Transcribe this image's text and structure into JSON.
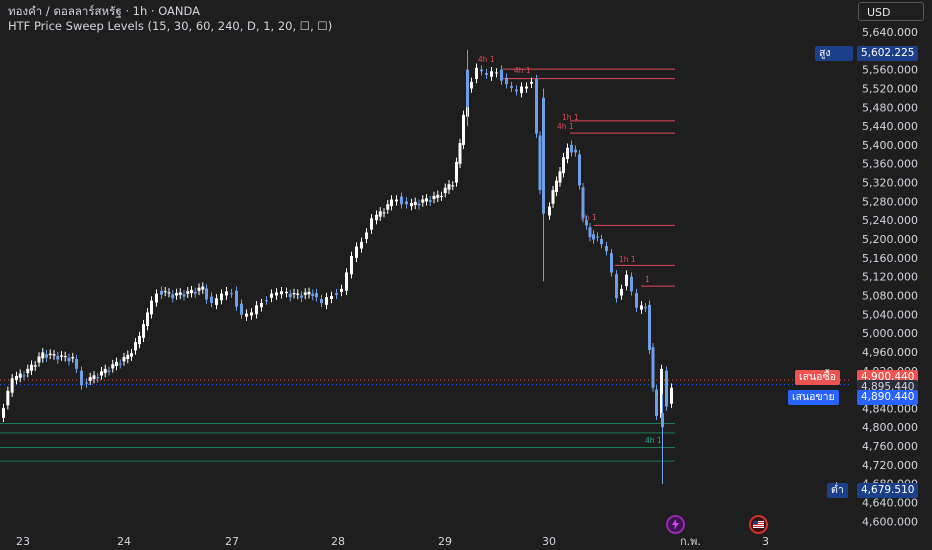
{
  "header": {
    "symbol_line": "ทองคำ / ดอลลาร์สหรัฐ · 1h · OANDA",
    "indicator_line": "HTF Price Sweep Levels (15, 30, 60, 240, D, 1, 20, ☐, ☐)"
  },
  "currency_button": "USD",
  "price_tags": {
    "high_label": "สูง",
    "high_value": "5,602.225",
    "ask_label": "เสนอซื้อ",
    "ask_value": "4,900.440",
    "last_value": "4,895.440",
    "bid_label": "เสนอขาย",
    "bid_value": "4,890.440",
    "low_label": "ต่ำ",
    "low_value": "4,679.510"
  },
  "colors": {
    "background": "#1e1e1e",
    "up_candle": "#ffffff",
    "down_candle": "#6f9fe8",
    "resistance_line": "#e34a5a",
    "support_line": "#1f7a55",
    "ask_tag": "#ef5350",
    "bid_tag": "#2962ff",
    "event_icon": "#7b2fbf"
  },
  "sweep_labels": {
    "top_a": "4h 1",
    "top_b": "4h 1",
    "mid_a": "1h 1",
    "mid_b": "4h 1",
    "lower_a": "1h 1",
    "lower_b": "1h 1",
    "lower_c": "1",
    "support": "4h 1"
  },
  "chart_data": {
    "type": "candlestick",
    "y_axis": {
      "ticks": [
        "5,640.000",
        "5,600.000",
        "5,560.000",
        "5,520.000",
        "5,480.000",
        "5,440.000",
        "5,400.000",
        "5,360.000",
        "5,320.000",
        "5,280.000",
        "5,240.000",
        "5,200.000",
        "5,160.000",
        "5,120.000",
        "5,080.000",
        "5,040.000",
        "5,000.000",
        "4,960.000",
        "4,920.000",
        "4,880.000",
        "4,840.000",
        "4,800.000",
        "4,760.000",
        "4,720.000",
        "4,680.000",
        "4,640.000",
        "4,600.000"
      ],
      "range": [
        4590,
        5660
      ]
    },
    "x_axis": {
      "ticks": [
        "23",
        "24",
        "27",
        "28",
        "29",
        "30",
        "ก.พ.",
        "3"
      ]
    },
    "session_high": 5602.225,
    "session_low": 4679.51,
    "resistance_levels": [
      5561,
      5541,
      5451,
      5425,
      5229,
      5144,
      5100
    ],
    "support_levels": [
      4808,
      4788,
      4757,
      4728
    ],
    "events": [
      "lightning-event",
      "us-flag-event"
    ]
  }
}
